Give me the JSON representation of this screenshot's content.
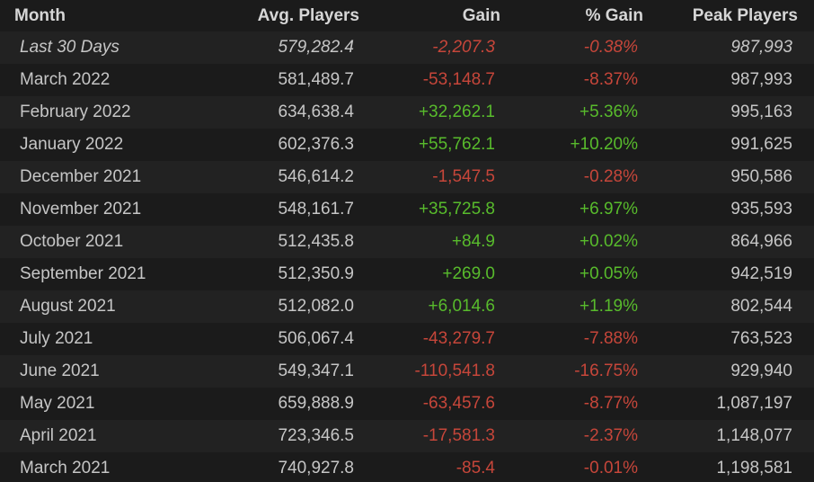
{
  "table": {
    "columns": [
      "Month",
      "Avg. Players",
      "Gain",
      "% Gain",
      "Peak Players"
    ],
    "rows": [
      [
        "Last 30 Days",
        "579,282.4",
        "-2,207.3",
        "-0.38%",
        "987,993"
      ],
      [
        "March 2022",
        "581,489.7",
        "-53,148.7",
        "-8.37%",
        "987,993"
      ],
      [
        "February 2022",
        "634,638.4",
        "+32,262.1",
        "+5.36%",
        "995,163"
      ],
      [
        "January 2022",
        "602,376.3",
        "+55,762.1",
        "+10.20%",
        "991,625"
      ],
      [
        "December 2021",
        "546,614.2",
        "-1,547.5",
        "-0.28%",
        "950,586"
      ],
      [
        "November 2021",
        "548,161.7",
        "+35,725.8",
        "+6.97%",
        "935,593"
      ],
      [
        "October 2021",
        "512,435.8",
        "+84.9",
        "+0.02%",
        "864,966"
      ],
      [
        "September 2021",
        "512,350.9",
        "+269.0",
        "+0.05%",
        "942,519"
      ],
      [
        "August 2021",
        "512,082.0",
        "+6,014.6",
        "+1.19%",
        "802,544"
      ],
      [
        "July 2021",
        "506,067.4",
        "-43,279.7",
        "-7.88%",
        "763,523"
      ],
      [
        "June 2021",
        "549,347.1",
        "-110,541.8",
        "-16.75%",
        "929,940"
      ],
      [
        "May 2021",
        "659,888.9",
        "-63,457.6",
        "-8.77%",
        "1,087,197"
      ],
      [
        "April 2021",
        "723,346.5",
        "-17,581.3",
        "-2.37%",
        "1,148,077"
      ],
      [
        "March 2021",
        "740,927.8",
        "-85.4",
        "-0.01%",
        "1,198,581"
      ]
    ]
  }
}
